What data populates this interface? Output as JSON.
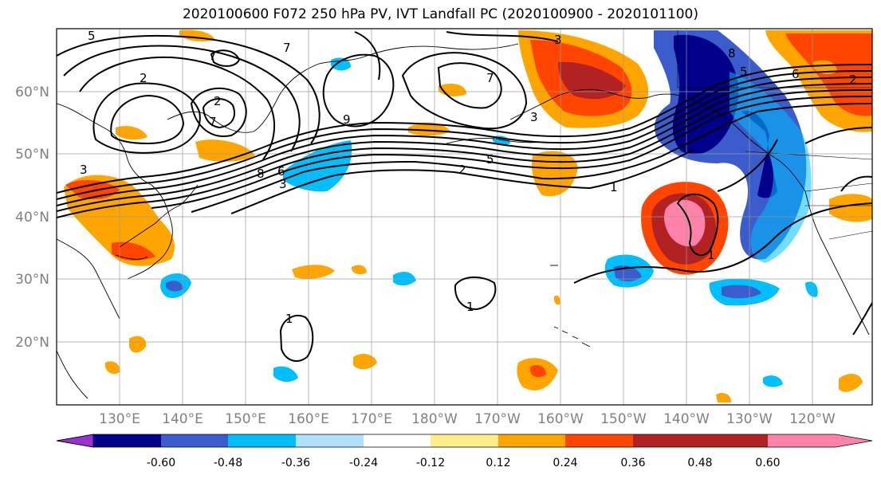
{
  "title": "2020100600 F072 250 hPa PV, IVT Landfall PC (2020100900 - 2020101100)",
  "map": {
    "lat_labels": [
      "60°N",
      "50°N",
      "40°N",
      "30°N",
      "20°N"
    ],
    "lon_labels": [
      "130°E",
      "140°E",
      "150°E",
      "160°E",
      "170°E",
      "180°W",
      "170°W",
      "160°W",
      "150°W",
      "140°W",
      "130°W",
      "120°W"
    ],
    "contour_labels": [
      "5",
      "7",
      "2",
      "2",
      "7",
      "7",
      "9",
      "3",
      "3",
      "8",
      "6",
      "3",
      "7",
      "2",
      "5",
      "1",
      "1",
      "1",
      "1",
      "8",
      "6",
      "5",
      "3",
      "2"
    ]
  },
  "colorbar": {
    "levels": [
      "-0.60",
      "-0.48",
      "-0.36",
      "-0.24",
      "-0.12",
      "0.12",
      "0.24",
      "0.36",
      "0.48",
      "0.60"
    ],
    "colors": [
      "#9b30d0",
      "#00008b",
      "#3a5ccc",
      "#00bfff",
      "#b0e2ff",
      "#ffffff",
      "#ffec8b",
      "#ffa500",
      "#ff4500",
      "#b22222",
      "#ff82ab"
    ]
  }
}
